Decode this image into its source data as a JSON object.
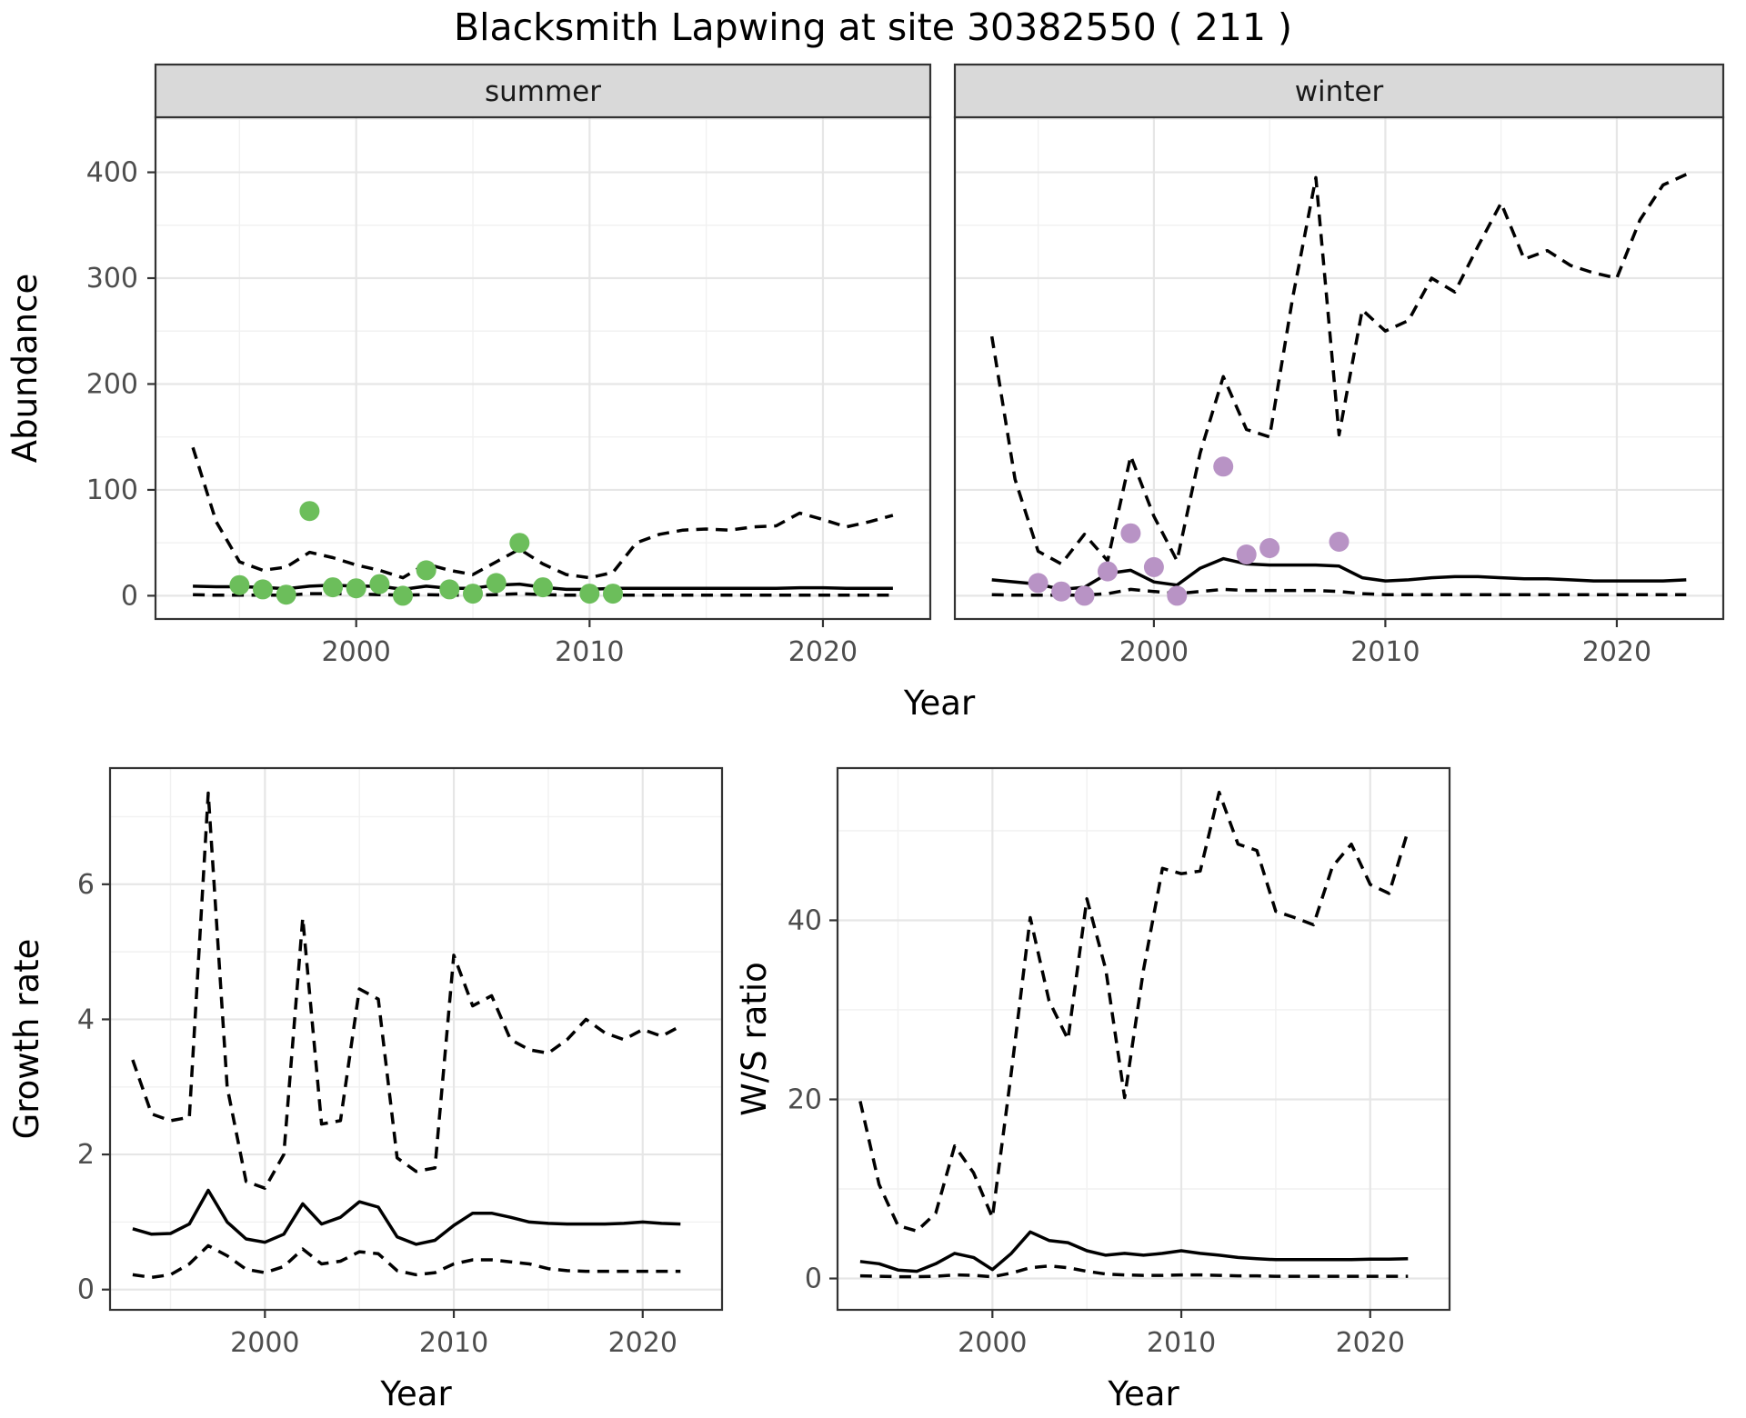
{
  "title": "Blacksmith Lapwing at site 30382550 ( 211 )",
  "colors": {
    "summer_points": "#6CBE5B",
    "winter_points": "#B893C5",
    "line": "#000000",
    "strip_bg": "#D9D9D9",
    "panel_border": "#333333",
    "grid_major": "#E6E6E6",
    "grid_minor": "#F1F1F1",
    "tick_label": "#4D4D4D",
    "axis_title": "#000000"
  },
  "chart_data": [
    {
      "id": "abundance",
      "type": "line",
      "xlabel": "Year",
      "ylabel": "Abundance",
      "x_ticks": [
        2000,
        2010,
        2020
      ],
      "y_ticks": [
        0,
        100,
        200,
        300,
        400
      ],
      "xlim": [
        1991.4,
        2024.6
      ],
      "ylim": [
        -22,
        452
      ],
      "years": [
        1993,
        1994,
        1995,
        1996,
        1997,
        1998,
        1999,
        2000,
        2001,
        2002,
        2003,
        2004,
        2005,
        2006,
        2007,
        2008,
        2009,
        2010,
        2011,
        2012,
        2013,
        2014,
        2015,
        2016,
        2017,
        2018,
        2019,
        2020,
        2021,
        2022,
        2023
      ],
      "facets": [
        {
          "label": "summer",
          "point_color": "#6CBE5B",
          "upper": [
            140,
            70,
            32,
            24,
            27,
            41,
            36,
            29,
            24,
            17,
            30,
            24,
            20,
            32,
            44,
            30,
            20,
            17,
            22,
            50,
            58,
            62,
            63,
            62,
            65,
            66,
            78,
            72,
            65,
            70,
            76
          ],
          "median": [
            9,
            8.5,
            8.5,
            8,
            6.5,
            9,
            10,
            9,
            9,
            6,
            9,
            7,
            7,
            10,
            11,
            8,
            6,
            6,
            7,
            7,
            7,
            7,
            7,
            7,
            7,
            7,
            7.5,
            7.5,
            7,
            7,
            7
          ],
          "lower": [
            1,
            0.5,
            0.5,
            0.5,
            0.5,
            2,
            2,
            1.5,
            1,
            0.5,
            1,
            0.5,
            0.5,
            1,
            2,
            1,
            0.5,
            0.5,
            0.5,
            0.5,
            0.5,
            0.5,
            0.5,
            0.5,
            0.5,
            0.5,
            0.5,
            0.5,
            0.5,
            0.5,
            0.5
          ],
          "points": [
            [
              1995,
              10
            ],
            [
              1996,
              6
            ],
            [
              1997,
              1
            ],
            [
              1998,
              80
            ],
            [
              1999,
              8
            ],
            [
              2000,
              7
            ],
            [
              2001,
              11
            ],
            [
              2002,
              0
            ],
            [
              2003,
              24
            ],
            [
              2004,
              6
            ],
            [
              2005,
              2
            ],
            [
              2006,
              12
            ],
            [
              2007,
              50
            ],
            [
              2008,
              8
            ],
            [
              2010,
              2
            ],
            [
              2011,
              2
            ]
          ]
        },
        {
          "label": "winter",
          "point_color": "#B893C5",
          "upper": [
            245,
            110,
            42,
            30,
            58,
            33,
            132,
            75,
            33,
            135,
            207,
            157,
            150,
            282,
            395,
            152,
            270,
            250,
            260,
            300,
            287,
            330,
            371,
            318,
            326,
            312,
            305,
            300,
            355,
            388,
            398
          ],
          "median": [
            15,
            13,
            11,
            6,
            8,
            21,
            24,
            13,
            10,
            26,
            35,
            30,
            29,
            29,
            29,
            28,
            17,
            14,
            15,
            17,
            18,
            18,
            17,
            16,
            16,
            15,
            14,
            14,
            14,
            14,
            15
          ],
          "lower": [
            1,
            0.5,
            0.5,
            0.5,
            0.5,
            2,
            6,
            4,
            2,
            4,
            6,
            5,
            5,
            5,
            5,
            4,
            2,
            1,
            1,
            1,
            1,
            1,
            1,
            1,
            1,
            1,
            1,
            1,
            1,
            1,
            1
          ],
          "points": [
            [
              1995,
              12
            ],
            [
              1996,
              4
            ],
            [
              1997,
              0
            ],
            [
              1998,
              23
            ],
            [
              1999,
              59
            ],
            [
              2000,
              27
            ],
            [
              2001,
              0
            ],
            [
              2003,
              122
            ],
            [
              2004,
              39
            ],
            [
              2005,
              45
            ],
            [
              2008,
              51
            ]
          ]
        }
      ]
    },
    {
      "id": "growth-rate",
      "type": "line",
      "xlabel": "Year",
      "ylabel": "Growth rate",
      "x_ticks": [
        2000,
        2010,
        2020
      ],
      "y_ticks": [
        0,
        2,
        4,
        6
      ],
      "xlim": [
        1991.8,
        2024.2
      ],
      "ylim": [
        -0.3,
        7.72
      ],
      "years": [
        1993,
        1994,
        1995,
        1996,
        1997,
        1998,
        1999,
        2000,
        2001,
        2002,
        2003,
        2004,
        2005,
        2006,
        2007,
        2008,
        2009,
        2010,
        2011,
        2012,
        2013,
        2014,
        2015,
        2016,
        2017,
        2018,
        2019,
        2020,
        2021,
        2022
      ],
      "upper": [
        3.4,
        2.6,
        2.5,
        2.55,
        7.35,
        3.0,
        1.6,
        1.5,
        2.0,
        5.5,
        2.45,
        2.5,
        4.45,
        4.3,
        1.95,
        1.75,
        1.8,
        4.95,
        4.2,
        4.35,
        3.7,
        3.55,
        3.5,
        3.7,
        4.0,
        3.8,
        3.7,
        3.85,
        3.75,
        3.9
      ],
      "median": [
        0.9,
        0.82,
        0.83,
        0.97,
        1.47,
        1.0,
        0.75,
        0.7,
        0.82,
        1.27,
        0.97,
        1.07,
        1.3,
        1.22,
        0.78,
        0.67,
        0.73,
        0.95,
        1.13,
        1.13,
        1.07,
        1.0,
        0.98,
        0.97,
        0.97,
        0.97,
        0.98,
        1.0,
        0.98,
        0.97
      ],
      "lower": [
        0.22,
        0.18,
        0.22,
        0.38,
        0.65,
        0.5,
        0.3,
        0.25,
        0.34,
        0.6,
        0.38,
        0.42,
        0.56,
        0.53,
        0.28,
        0.22,
        0.25,
        0.38,
        0.44,
        0.44,
        0.41,
        0.38,
        0.31,
        0.28,
        0.27,
        0.27,
        0.27,
        0.27,
        0.27,
        0.27
      ]
    },
    {
      "id": "ws-ratio",
      "type": "line",
      "xlabel": "Year",
      "ylabel": "W/S ratio",
      "x_ticks": [
        2000,
        2010,
        2020
      ],
      "y_ticks": [
        0,
        20,
        40
      ],
      "xlim": [
        1991.8,
        2024.2
      ],
      "ylim": [
        -3.5,
        57
      ],
      "years": [
        1993,
        1994,
        1995,
        1996,
        1997,
        1998,
        1999,
        2000,
        2001,
        2002,
        2003,
        2004,
        2005,
        2006,
        2007,
        2008,
        2009,
        2010,
        2011,
        2012,
        2013,
        2014,
        2015,
        2016,
        2017,
        2018,
        2019,
        2020,
        2021,
        2022
      ],
      "upper": [
        19.8,
        10.5,
        5.9,
        5.3,
        7.3,
        14.8,
        11.8,
        6.8,
        23,
        40.3,
        31,
        26.7,
        42.4,
        34.5,
        20.2,
        34.5,
        45.8,
        45.2,
        45.5,
        54.3,
        48.5,
        47.8,
        41,
        40.3,
        39.5,
        46,
        48.5,
        44,
        43,
        50
      ],
      "median": [
        1.9,
        1.65,
        0.95,
        0.8,
        1.65,
        2.8,
        2.35,
        1.0,
        2.8,
        5.2,
        4.25,
        4.0,
        3.1,
        2.6,
        2.8,
        2.6,
        2.8,
        3.1,
        2.8,
        2.6,
        2.35,
        2.2,
        2.1,
        2.1,
        2.1,
        2.1,
        2.1,
        2.15,
        2.15,
        2.2
      ],
      "lower": [
        0.3,
        0.25,
        0.2,
        0.2,
        0.25,
        0.4,
        0.35,
        0.2,
        0.6,
        1.2,
        1.4,
        1.2,
        0.8,
        0.5,
        0.4,
        0.35,
        0.35,
        0.4,
        0.4,
        0.35,
        0.3,
        0.3,
        0.25,
        0.25,
        0.25,
        0.25,
        0.25,
        0.25,
        0.25,
        0.25
      ]
    }
  ]
}
